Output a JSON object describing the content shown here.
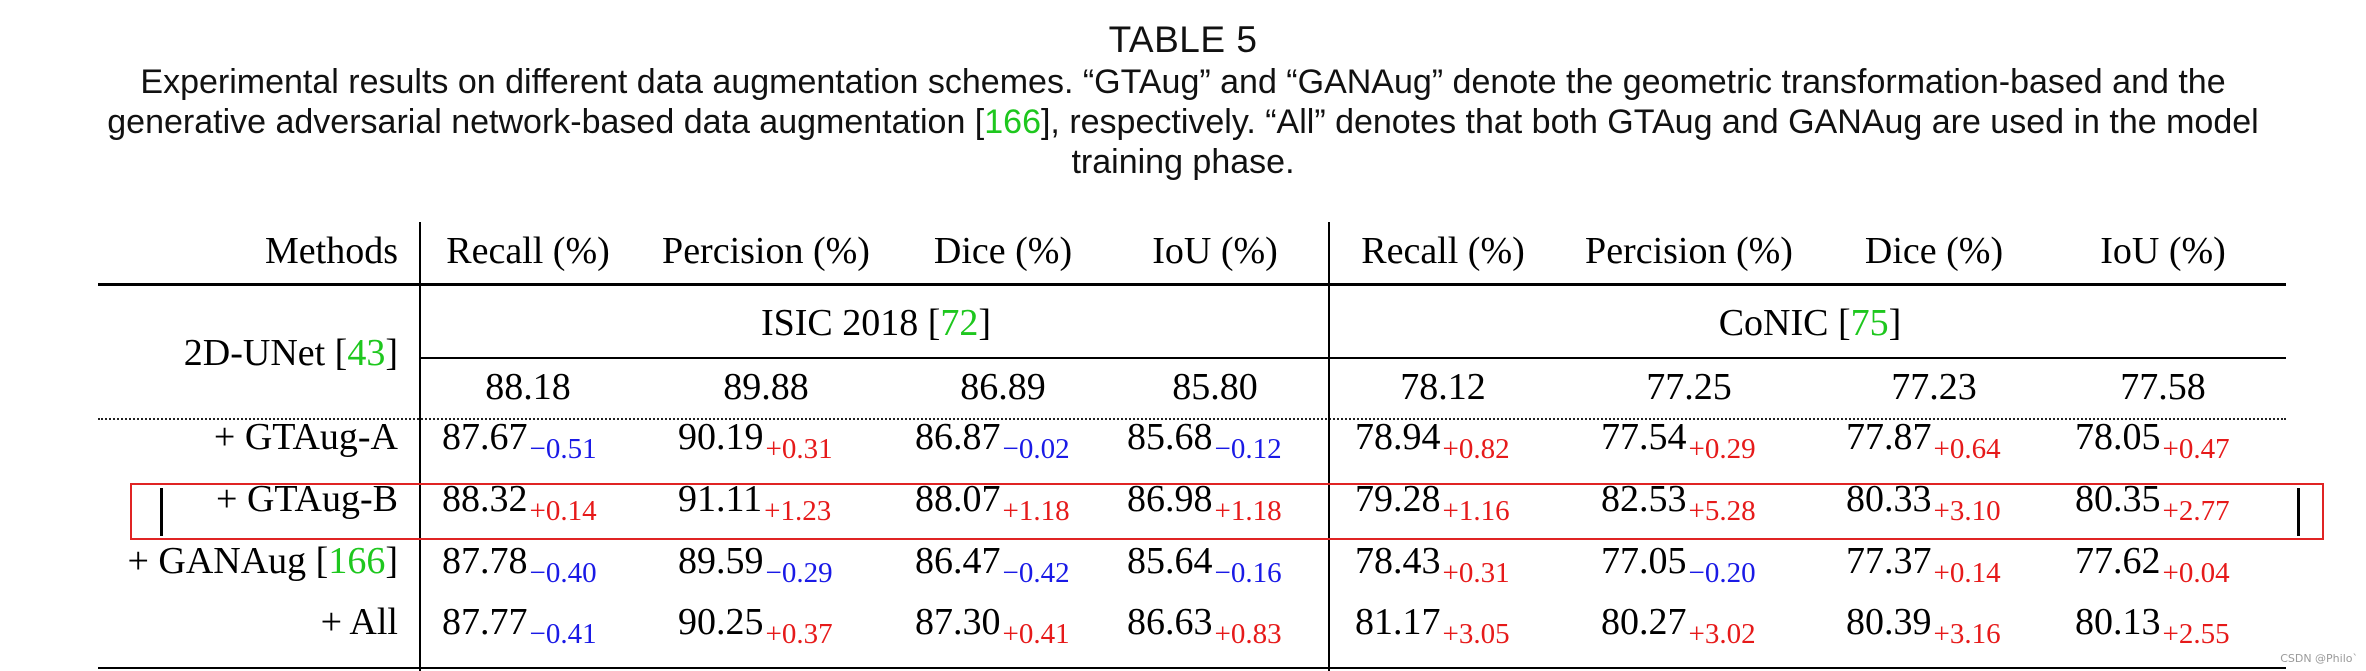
{
  "caption": {
    "title": "TABLE 5",
    "line1_pre": "Experimental results on different data augmentation schemes. “GTAug” and “GANAug” denote the geometric transformation-based and the",
    "line2_pre": "generative adversarial network-based data augmentation [",
    "line2_cite": "166",
    "line2_post": "], respectively. “All” denotes that both GTAug and GANAug are used in the model",
    "line3": "training phase."
  },
  "colors": {
    "citation": "#1ec71e",
    "delta_negative": "#1a1ae6",
    "delta_positive": "#e61a1a",
    "highlight_box": "#e02424"
  },
  "table": {
    "header": {
      "methods": "Methods",
      "cols": [
        "Recall (%)",
        "Percision (%)",
        "Dice (%)",
        "IoU (%)",
        "Recall (%)",
        "Percision (%)",
        "Dice (%)",
        "IoU (%)"
      ]
    },
    "datasets": {
      "isic": {
        "name": "ISIC 2018 [",
        "cite": "72",
        "close": "]"
      },
      "conic": {
        "name": "CoNIC [",
        "cite": "75",
        "close": "]"
      }
    },
    "baseline": {
      "method": "2D-UNet [",
      "cite": "43",
      "close": "]",
      "values": [
        "88.18",
        "89.88",
        "86.89",
        "85.80",
        "78.12",
        "77.25",
        "77.23",
        "77.58"
      ]
    },
    "rows": [
      {
        "method": "+ GTAug-A",
        "method_cite": "",
        "values": [
          "87.67",
          "90.19",
          "86.87",
          "85.68",
          "78.94",
          "77.54",
          "77.87",
          "78.05"
        ],
        "deltas": [
          "−0.51",
          "+0.31",
          "−0.02",
          "−0.12",
          "+0.82",
          "+0.29",
          "+0.64",
          "+0.47"
        ]
      },
      {
        "method": "+ GTAug-B",
        "method_cite": "",
        "values": [
          "88.32",
          "91.11",
          "88.07",
          "86.98",
          "79.28",
          "82.53",
          "80.33",
          "80.35"
        ],
        "deltas": [
          "+0.14",
          "+1.23",
          "+1.18",
          "+1.18",
          "+1.16",
          "+5.28",
          "+3.10",
          "+2.77"
        ]
      },
      {
        "method": "+ GANAug [",
        "method_cite": "166",
        "values": [
          "87.78",
          "89.59",
          "86.47",
          "85.64",
          "78.43",
          "77.05",
          "77.37",
          "77.62"
        ],
        "deltas": [
          "−0.40",
          "−0.29",
          "−0.42",
          "−0.16",
          "+0.31",
          "−0.20",
          "+0.14",
          "+0.04"
        ]
      },
      {
        "method": "+ All",
        "method_cite": "",
        "values": [
          "87.77",
          "90.25",
          "87.30",
          "86.63",
          "81.17",
          "80.27",
          "80.39",
          "80.13"
        ],
        "deltas": [
          "−0.41",
          "+0.37",
          "+0.41",
          "+0.83",
          "+3.05",
          "+3.02",
          "+3.16",
          "+2.55"
        ]
      }
    ]
  },
  "watermark": "CSDN @Philo`"
}
